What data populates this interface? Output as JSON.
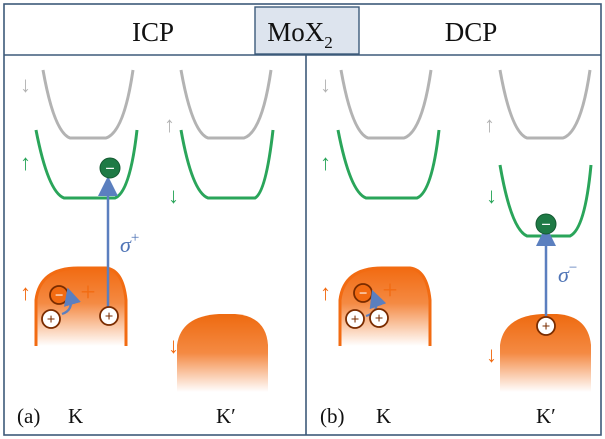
{
  "header": {
    "left": "ICP",
    "center_main": "MoX",
    "center_sub": "2",
    "right": "DCP"
  },
  "panels": {
    "a": {
      "label": "(a)",
      "valley_left": "K",
      "valley_right": "K′"
    },
    "b": {
      "label": "(b)",
      "valley_left": "K",
      "valley_right": "K′"
    }
  },
  "symbols": {
    "sigma_plus_base": "σ",
    "sigma_plus_sup": "+",
    "sigma_minus_base": "σ",
    "sigma_minus_sup": "−",
    "plus": "+",
    "minus": "−",
    "spin_up": "↑",
    "spin_down": "↓"
  },
  "colors": {
    "border": "#3d5a7a",
    "header_center_bg": "#dde4ee",
    "gray_band": "#b3b3b3",
    "green_band": "#2aa55a",
    "orange": "#f26b12",
    "arrow": "#5b7fbf",
    "electron": "#1e7a45"
  }
}
